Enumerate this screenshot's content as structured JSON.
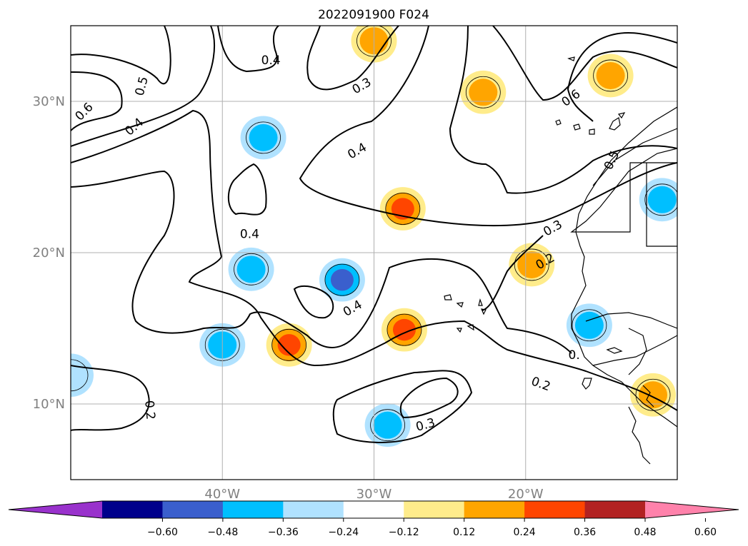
{
  "chart_data": {
    "type": "contour map",
    "title": "2022091900 F024",
    "xlabel": "",
    "ylabel": "",
    "lon_range": [
      -50,
      -10
    ],
    "lat_range": [
      5,
      35
    ],
    "grid": true,
    "x_ticks": [
      {
        "value": -40,
        "label": "40°W"
      },
      {
        "value": -30,
        "label": "30°W"
      },
      {
        "value": -20,
        "label": "20°W"
      }
    ],
    "y_ticks": [
      {
        "value": 30,
        "label": "30°N"
      },
      {
        "value": 20,
        "label": "20°N"
      },
      {
        "value": 10,
        "label": "10°N"
      }
    ],
    "colorbar": {
      "orientation": "horizontal",
      "extend": "both",
      "levels": [
        -0.72,
        -0.6,
        -0.48,
        -0.36,
        -0.24,
        -0.12,
        0.12,
        0.24,
        0.36,
        0.48,
        0.6,
        0.72
      ],
      "ticks": [
        "−0.60",
        "−0.48",
        "−0.36",
        "−0.24",
        "−0.12",
        "0.12",
        "0.24",
        "0.36",
        "0.48",
        "0.60"
      ],
      "colors": [
        "#9932cc",
        "#00008b",
        "#3a5fcd",
        "#00bfff",
        "#b0e2ff",
        "#ffffff",
        "#ffec8b",
        "#ffa500",
        "#ff4500",
        "#b22222",
        "#ff82ab"
      ]
    },
    "contour_lines": {
      "color": "#000000",
      "labels": [
        {
          "text": "0.6",
          "lon": -49.1,
          "lat": 29.3,
          "rotate": -45
        },
        {
          "text": "0.5",
          "lon": -45.3,
          "lat": 31.0,
          "rotate": -75
        },
        {
          "text": "0.4",
          "lon": -45.8,
          "lat": 28.3,
          "rotate": -40
        },
        {
          "text": "0.4",
          "lon": -36.8,
          "lat": 32.7,
          "rotate": 0
        },
        {
          "text": "0.3",
          "lon": -30.8,
          "lat": 31.0,
          "rotate": -30
        },
        {
          "text": "0.4",
          "lon": -31.1,
          "lat": 26.7,
          "rotate": -30
        },
        {
          "text": "0.4",
          "lon": -38.2,
          "lat": 21.2,
          "rotate": 0
        },
        {
          "text": "0.4",
          "lon": -31.4,
          "lat": 16.3,
          "rotate": -30
        },
        {
          "text": "0.6",
          "lon": -17.0,
          "lat": 30.2,
          "rotate": -35
        },
        {
          "text": "0.5",
          "lon": -14.3,
          "lat": 26.1,
          "rotate": -65
        },
        {
          "text": "0.3",
          "lon": -18.2,
          "lat": 21.6,
          "rotate": -30
        },
        {
          "text": "0.2",
          "lon": -18.7,
          "lat": 19.4,
          "rotate": -30
        },
        {
          "text": "0.2",
          "lon": -19.0,
          "lat": 11.3,
          "rotate": 20
        },
        {
          "text": "0.3",
          "lon": -26.6,
          "lat": 8.6,
          "rotate": -15
        },
        {
          "text": "0.2",
          "lon": -44.8,
          "lat": 9.6,
          "rotate": 85
        },
        {
          "text": "0.",
          "lon": -16.8,
          "lat": 13.2,
          "rotate": 0
        }
      ]
    },
    "anomaly_centers": [
      {
        "lon": -30.0,
        "lat": 34.0,
        "value": 0.36
      },
      {
        "lon": -22.8,
        "lat": 30.6,
        "value": 0.36
      },
      {
        "lon": -14.4,
        "lat": 31.7,
        "value": 0.36
      },
      {
        "lon": -37.3,
        "lat": 27.6,
        "value": -0.36
      },
      {
        "lon": -28.1,
        "lat": 22.9,
        "value": 0.48
      },
      {
        "lon": -38.1,
        "lat": 18.9,
        "value": -0.36
      },
      {
        "lon": -32.1,
        "lat": 18.2,
        "value": -0.48
      },
      {
        "lon": -19.6,
        "lat": 19.2,
        "value": 0.36
      },
      {
        "lon": -11.0,
        "lat": 23.5,
        "value": -0.36
      },
      {
        "lon": -40.0,
        "lat": 13.9,
        "value": -0.36
      },
      {
        "lon": -35.6,
        "lat": 13.9,
        "value": 0.48
      },
      {
        "lon": -28.0,
        "lat": 14.9,
        "value": 0.48
      },
      {
        "lon": -15.8,
        "lat": 15.2,
        "value": -0.36
      },
      {
        "lon": -29.1,
        "lat": 8.6,
        "value": -0.36
      },
      {
        "lon": -11.6,
        "lat": 10.6,
        "value": 0.36
      },
      {
        "lon": -50.0,
        "lat": 11.9,
        "value": -0.24
      }
    ]
  }
}
